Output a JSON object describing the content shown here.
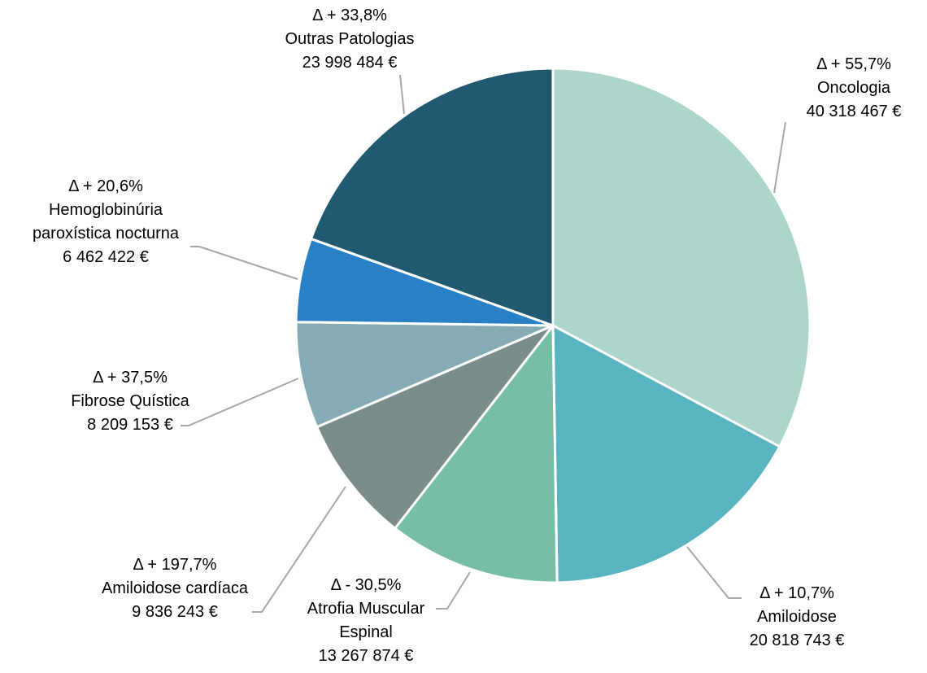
{
  "chart_data": {
    "type": "pie",
    "categories": [
      "Oncologia",
      "Amiloidose",
      "Atrofia Muscular Espinal",
      "Amiloidose cardíaca",
      "Fibrose Quística",
      "Hemoglobinúria paroxística nocturna",
      "Outras Patologias"
    ],
    "values": [
      40318467,
      20818743,
      13267874,
      9836243,
      8209153,
      6462422,
      23998484
    ],
    "value_labels": [
      "40 318 467 €",
      "20 818 743 €",
      "13 267 874 €",
      "9 836 243 €",
      "8 209 153 €",
      "6 462 422 €",
      "23 998 484 €"
    ],
    "annotations": [
      "Δ + 55,7%",
      "Δ + 10,7%",
      "Δ - 30,5%",
      "Δ + 197,7%",
      "Δ + 37,5%",
      "Δ + 20,6%",
      "Δ + 33,8%"
    ],
    "colors": [
      "#acd6cb",
      "#58b4c0",
      "#76bea8",
      "#7a8c8c",
      "#85abb5",
      "#2a80c6",
      "#215a70"
    ]
  }
}
